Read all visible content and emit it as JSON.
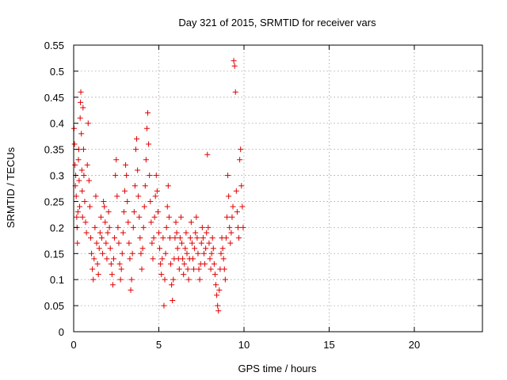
{
  "chart_data": {
    "type": "scatter",
    "title": "Day 321 of 2015, SRMTID for receiver vars",
    "xlabel": "GPS time / hours",
    "ylabel": "SRMTID / TECUs",
    "xlim": [
      0,
      24
    ],
    "ylim": [
      0,
      0.55
    ],
    "x_ticks": [
      0,
      5,
      10,
      15,
      20
    ],
    "y_ticks": [
      0,
      0.05,
      0.1,
      0.15,
      0.2,
      0.25,
      0.3,
      0.35,
      0.4,
      0.45,
      0.5,
      0.55
    ],
    "x_tick_labels": [
      "0",
      "5",
      "10",
      "15",
      "20"
    ],
    "y_tick_labels": [
      "0",
      "0.05",
      "0.1",
      "0.15",
      "0.2",
      "0.25",
      "0.3",
      "0.35",
      "0.4",
      "0.45",
      "0.5",
      "0.55"
    ],
    "grid": true,
    "marker": "plus",
    "marker_color": "#e00000",
    "series": [
      {
        "points": [
          [
            0.02,
            0.39
          ],
          [
            0.05,
            0.36
          ],
          [
            0.08,
            0.32
          ],
          [
            0.1,
            0.28
          ],
          [
            0.12,
            0.3
          ],
          [
            0.15,
            0.26
          ],
          [
            0.18,
            0.22
          ],
          [
            0.2,
            0.2
          ],
          [
            0.22,
            0.17
          ],
          [
            0.25,
            0.23
          ],
          [
            0.28,
            0.33
          ],
          [
            0.3,
            0.35
          ],
          [
            0.32,
            0.29
          ],
          [
            0.35,
            0.24
          ],
          [
            0.38,
            0.41
          ],
          [
            0.4,
            0.44
          ],
          [
            0.42,
            0.46
          ],
          [
            0.45,
            0.38
          ],
          [
            0.48,
            0.31
          ],
          [
            0.5,
            0.27
          ],
          [
            0.52,
            0.22
          ],
          [
            0.55,
            0.43
          ],
          [
            0.58,
            0.35
          ],
          [
            0.6,
            0.3
          ],
          [
            0.65,
            0.25
          ],
          [
            0.7,
            0.21
          ],
          [
            0.75,
            0.19
          ],
          [
            0.8,
            0.32
          ],
          [
            0.85,
            0.4
          ],
          [
            0.9,
            0.29
          ],
          [
            0.95,
            0.24
          ],
          [
            1.0,
            0.18
          ],
          [
            1.05,
            0.15
          ],
          [
            1.1,
            0.12
          ],
          [
            1.15,
            0.1
          ],
          [
            1.2,
            0.14
          ],
          [
            1.25,
            0.2
          ],
          [
            1.3,
            0.26
          ],
          [
            1.35,
            0.17
          ],
          [
            1.4,
            0.13
          ],
          [
            1.45,
            0.11
          ],
          [
            1.5,
            0.16
          ],
          [
            1.55,
            0.19
          ],
          [
            1.6,
            0.22
          ],
          [
            1.65,
            0.18
          ],
          [
            1.7,
            0.15
          ],
          [
            1.75,
            0.25
          ],
          [
            1.8,
            0.24
          ],
          [
            1.85,
            0.21
          ],
          [
            1.9,
            0.17
          ],
          [
            1.95,
            0.14
          ],
          [
            2.0,
            0.19
          ],
          [
            2.05,
            0.23
          ],
          [
            2.1,
            0.2
          ],
          [
            2.15,
            0.16
          ],
          [
            2.2,
            0.13
          ],
          [
            2.25,
            0.11
          ],
          [
            2.3,
            0.09
          ],
          [
            2.35,
            0.14
          ],
          [
            2.4,
            0.18
          ],
          [
            2.45,
            0.3
          ],
          [
            2.5,
            0.33
          ],
          [
            2.55,
            0.26
          ],
          [
            2.6,
            0.2
          ],
          [
            2.65,
            0.17
          ],
          [
            2.7,
            0.13
          ],
          [
            2.75,
            0.1
          ],
          [
            2.8,
            0.12
          ],
          [
            2.85,
            0.15
          ],
          [
            2.9,
            0.19
          ],
          [
            2.95,
            0.23
          ],
          [
            3.0,
            0.27
          ],
          [
            3.05,
            0.32
          ],
          [
            3.1,
            0.3
          ],
          [
            3.15,
            0.25
          ],
          [
            3.2,
            0.21
          ],
          [
            3.25,
            0.17
          ],
          [
            3.3,
            0.14
          ],
          [
            3.35,
            0.08
          ],
          [
            3.4,
            0.1
          ],
          [
            3.45,
            0.15
          ],
          [
            3.5,
            0.2
          ],
          [
            3.55,
            0.23
          ],
          [
            3.6,
            0.28
          ],
          [
            3.65,
            0.35
          ],
          [
            3.7,
            0.37
          ],
          [
            3.75,
            0.31
          ],
          [
            3.8,
            0.26
          ],
          [
            3.85,
            0.22
          ],
          [
            3.9,
            0.18
          ],
          [
            3.95,
            0.15
          ],
          [
            4.0,
            0.12
          ],
          [
            4.05,
            0.16
          ],
          [
            4.1,
            0.2
          ],
          [
            4.15,
            0.24
          ],
          [
            4.2,
            0.28
          ],
          [
            4.25,
            0.33
          ],
          [
            4.3,
            0.39
          ],
          [
            4.35,
            0.42
          ],
          [
            4.4,
            0.36
          ],
          [
            4.45,
            0.3
          ],
          [
            4.5,
            0.25
          ],
          [
            4.55,
            0.21
          ],
          [
            4.6,
            0.17
          ],
          [
            4.65,
            0.14
          ],
          [
            4.7,
            0.18
          ],
          [
            4.75,
            0.22
          ],
          [
            4.8,
            0.26
          ],
          [
            4.85,
            0.3
          ],
          [
            4.9,
            0.27
          ],
          [
            4.95,
            0.23
          ],
          [
            5.0,
            0.19
          ],
          [
            5.05,
            0.16
          ],
          [
            5.1,
            0.13
          ],
          [
            5.15,
            0.11
          ],
          [
            5.2,
            0.14
          ],
          [
            5.25,
            0.18
          ],
          [
            5.3,
            0.05
          ],
          [
            5.35,
            0.1
          ],
          [
            5.4,
            0.15
          ],
          [
            5.45,
            0.2
          ],
          [
            5.5,
            0.24
          ],
          [
            5.55,
            0.28
          ],
          [
            5.6,
            0.22
          ],
          [
            5.65,
            0.18
          ],
          [
            5.7,
            0.13
          ],
          [
            5.75,
            0.09
          ],
          [
            5.8,
            0.06
          ],
          [
            5.85,
            0.1
          ],
          [
            5.9,
            0.14
          ],
          [
            5.95,
            0.18
          ],
          [
            6.0,
            0.21
          ],
          [
            6.05,
            0.19
          ],
          [
            6.1,
            0.16
          ],
          [
            6.15,
            0.14
          ],
          [
            6.2,
            0.12
          ],
          [
            6.25,
            0.18
          ],
          [
            6.3,
            0.22
          ],
          [
            6.35,
            0.17
          ],
          [
            6.4,
            0.14
          ],
          [
            6.45,
            0.11
          ],
          [
            6.5,
            0.13
          ],
          [
            6.55,
            0.16
          ],
          [
            6.6,
            0.19
          ],
          [
            6.65,
            0.15
          ],
          [
            6.7,
            0.12
          ],
          [
            6.75,
            0.1
          ],
          [
            6.8,
            0.14
          ],
          [
            6.85,
            0.18
          ],
          [
            6.9,
            0.21
          ],
          [
            6.95,
            0.17
          ],
          [
            7.0,
            0.14
          ],
          [
            7.05,
            0.12
          ],
          [
            7.1,
            0.16
          ],
          [
            7.15,
            0.19
          ],
          [
            7.2,
            0.22
          ],
          [
            7.25,
            0.18
          ],
          [
            7.3,
            0.15
          ],
          [
            7.35,
            0.12
          ],
          [
            7.4,
            0.1
          ],
          [
            7.45,
            0.13
          ],
          [
            7.5,
            0.17
          ],
          [
            7.55,
            0.2
          ],
          [
            7.6,
            0.18
          ],
          [
            7.65,
            0.15
          ],
          [
            7.7,
            0.13
          ],
          [
            7.75,
            0.16
          ],
          [
            7.8,
            0.19
          ],
          [
            7.85,
            0.34
          ],
          [
            7.9,
            0.2
          ],
          [
            7.95,
            0.17
          ],
          [
            8.0,
            0.14
          ],
          [
            8.05,
            0.12
          ],
          [
            8.1,
            0.15
          ],
          [
            8.15,
            0.18
          ],
          [
            8.2,
            0.16
          ],
          [
            8.25,
            0.13
          ],
          [
            8.3,
            0.11
          ],
          [
            8.35,
            0.09
          ],
          [
            8.4,
            0.07
          ],
          [
            8.45,
            0.05
          ],
          [
            8.5,
            0.04
          ],
          [
            8.55,
            0.08
          ],
          [
            8.6,
            0.12
          ],
          [
            8.65,
            0.15
          ],
          [
            8.7,
            0.18
          ],
          [
            8.75,
            0.16
          ],
          [
            8.8,
            0.14
          ],
          [
            8.85,
            0.12
          ],
          [
            8.9,
            0.1
          ],
          [
            8.95,
            0.18
          ],
          [
            9.0,
            0.22
          ],
          [
            9.05,
            0.3
          ],
          [
            9.1,
            0.26
          ],
          [
            9.15,
            0.2
          ],
          [
            9.2,
            0.17
          ],
          [
            9.25,
            0.19
          ],
          [
            9.3,
            0.22
          ],
          [
            9.35,
            0.24
          ],
          [
            9.4,
            0.52
          ],
          [
            9.45,
            0.51
          ],
          [
            9.5,
            0.46
          ],
          [
            9.55,
            0.27
          ],
          [
            9.6,
            0.23
          ],
          [
            9.65,
            0.2
          ],
          [
            9.7,
            0.18
          ],
          [
            9.75,
            0.33
          ],
          [
            9.8,
            0.35
          ],
          [
            9.85,
            0.28
          ],
          [
            9.9,
            0.24
          ],
          [
            9.95,
            0.2
          ]
        ]
      }
    ]
  }
}
